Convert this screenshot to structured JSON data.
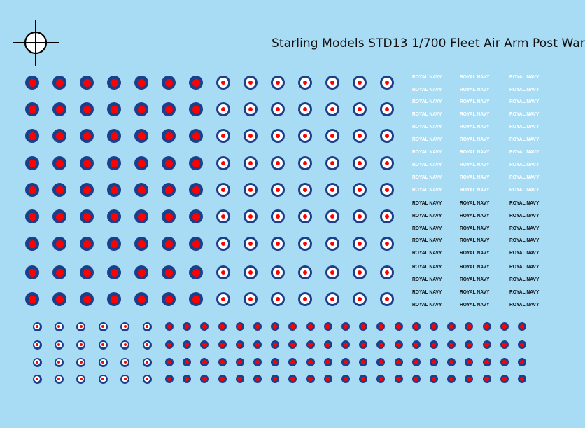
{
  "title": "Starling Models STD13 1/700 Fleet Air Arm Post War",
  "colors": {
    "background": "#a8dcf4",
    "blue": "#1c3f8c",
    "red": "#ff0000",
    "white": "#ffffff",
    "text": "#111111"
  },
  "registration_mark": "crosshair-circle-icon",
  "roundels": {
    "large_red_blue": {
      "type": "blue-red",
      "columns": 7,
      "rows": 9
    },
    "large_red_white_blue": {
      "type": "blue-white-red",
      "columns": 7,
      "rows": 9
    },
    "small_red_white_blue": {
      "type": "blue-white-red",
      "columns": 6,
      "rows": 4
    },
    "small_red_blue": {
      "type": "blue-red",
      "columns": 21,
      "rows": 4
    }
  },
  "labels": {
    "text": "ROYAL NAVY",
    "white_rows": 10,
    "black_rows": 9,
    "columns": 3
  }
}
